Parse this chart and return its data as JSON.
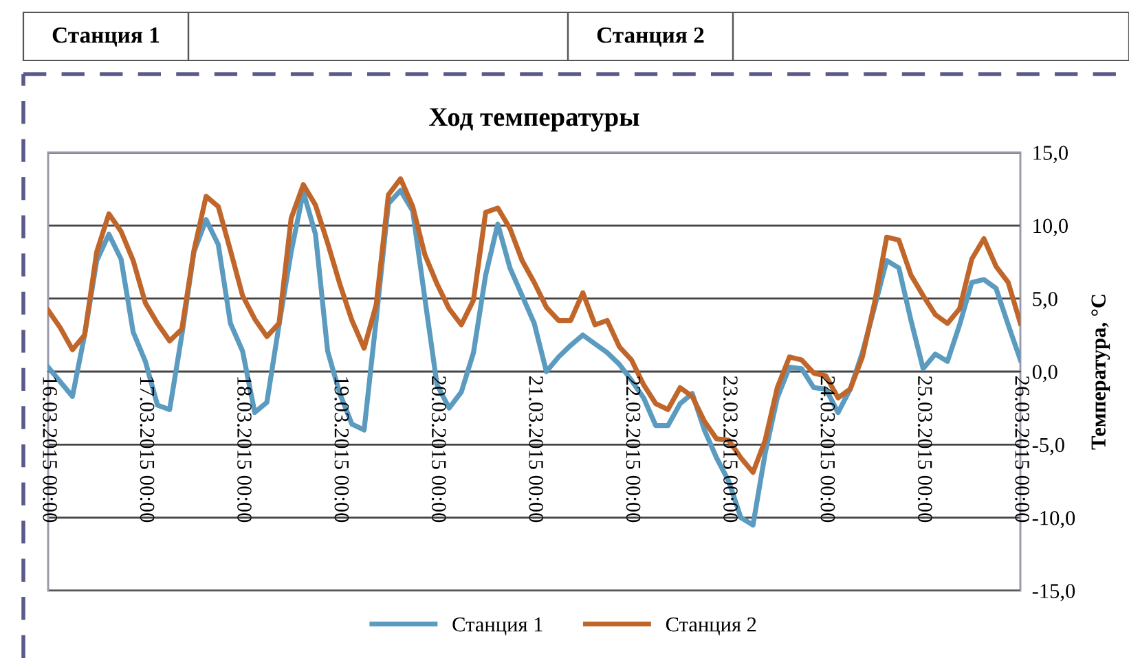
{
  "chart_data": {
    "type": "line",
    "title": "Ход температуры",
    "y2label": "Температура, °C",
    "annotations": [
      "Станция 1",
      "Станция 2"
    ],
    "x": [
      "2015-03-16T00:00",
      "2015-03-16T03:00",
      "2015-03-16T06:00",
      "2015-03-16T09:00",
      "2015-03-16T12:00",
      "2015-03-16T15:00",
      "2015-03-16T18:00",
      "2015-03-16T21:00",
      "2015-03-17T00:00",
      "2015-03-17T03:00",
      "2015-03-17T06:00",
      "2015-03-17T09:00",
      "2015-03-17T12:00",
      "2015-03-17T15:00",
      "2015-03-17T18:00",
      "2015-03-17T21:00",
      "2015-03-18T00:00",
      "2015-03-18T03:00",
      "2015-03-18T06:00",
      "2015-03-18T09:00",
      "2015-03-18T12:00",
      "2015-03-18T15:00",
      "2015-03-18T18:00",
      "2015-03-18T21:00",
      "2015-03-19T00:00",
      "2015-03-19T03:00",
      "2015-03-19T06:00",
      "2015-03-19T09:00",
      "2015-03-19T12:00",
      "2015-03-19T15:00",
      "2015-03-19T18:00",
      "2015-03-19T21:00",
      "2015-03-20T00:00",
      "2015-03-20T03:00",
      "2015-03-20T06:00",
      "2015-03-20T09:00",
      "2015-03-20T12:00",
      "2015-03-20T15:00",
      "2015-03-20T18:00",
      "2015-03-20T21:00",
      "2015-03-21T00:00",
      "2015-03-21T03:00",
      "2015-03-21T06:00",
      "2015-03-21T09:00",
      "2015-03-21T12:00",
      "2015-03-21T15:00",
      "2015-03-21T18:00",
      "2015-03-21T21:00",
      "2015-03-22T00:00",
      "2015-03-22T03:00",
      "2015-03-22T06:00",
      "2015-03-22T09:00",
      "2015-03-22T12:00",
      "2015-03-22T15:00",
      "2015-03-22T18:00",
      "2015-03-22T21:00",
      "2015-03-23T00:00",
      "2015-03-23T03:00",
      "2015-03-23T06:00",
      "2015-03-23T09:00",
      "2015-03-23T12:00",
      "2015-03-23T15:00",
      "2015-03-23T18:00",
      "2015-03-23T21:00",
      "2015-03-24T00:00",
      "2015-03-24T03:00",
      "2015-03-24T06:00",
      "2015-03-24T09:00",
      "2015-03-24T12:00",
      "2015-03-24T15:00",
      "2015-03-24T18:00",
      "2015-03-24T21:00",
      "2015-03-25T00:00",
      "2015-03-25T03:00",
      "2015-03-25T06:00",
      "2015-03-25T09:00",
      "2015-03-25T12:00",
      "2015-03-25T15:00",
      "2015-03-25T18:00",
      "2015-03-25T21:00",
      "2015-03-26T00:00"
    ],
    "series": [
      {
        "name": "Станция 1",
        "color": "#5b9bc0",
        "axis": "y2",
        "values": [
          0.3,
          -0.7,
          -1.7,
          2.5,
          7.6,
          9.4,
          7.7,
          2.7,
          0.7,
          -2.3,
          -2.6,
          2.5,
          8.2,
          10.4,
          8.7,
          3.3,
          1.4,
          -2.8,
          -2.1,
          3.2,
          8.2,
          12.3,
          9.4,
          1.4,
          -1.5,
          -3.6,
          -4.0,
          3.6,
          11.5,
          12.4,
          11.0,
          5.0,
          -0.9,
          -2.5,
          -1.4,
          1.3,
          6.6,
          10.1,
          7.1,
          5.2,
          3.3,
          0.0,
          1.0,
          1.8,
          2.5,
          1.9,
          1.3,
          0.5,
          -0.6,
          -1.8,
          -3.7,
          -3.7,
          -2.2,
          -1.5,
          -4.0,
          -5.9,
          -7.5,
          -10.0,
          -10.5,
          -5.6,
          -1.8,
          0.3,
          0.2,
          -1.1,
          -1.2,
          -2.8,
          -1.2,
          1.3,
          4.4,
          7.6,
          7.1,
          3.5,
          0.2,
          1.2,
          0.7,
          3.2,
          6.1,
          6.3,
          5.7,
          3.2,
          0.8
        ]
      },
      {
        "name": "Станция 2",
        "color": "#c0662b",
        "axis": "y2",
        "values": [
          4.2,
          3.0,
          1.5,
          2.5,
          8.2,
          10.8,
          9.6,
          7.6,
          4.7,
          3.3,
          2.1,
          2.9,
          8.3,
          12.0,
          11.3,
          8.3,
          5.2,
          3.6,
          2.4,
          3.3,
          10.5,
          12.8,
          11.4,
          8.8,
          6.0,
          3.5,
          1.6,
          4.6,
          12.1,
          13.2,
          11.3,
          8.0,
          6.0,
          4.3,
          3.2,
          4.9,
          10.9,
          11.2,
          9.8,
          7.6,
          6.1,
          4.4,
          3.5,
          3.5,
          5.4,
          3.2,
          3.5,
          1.7,
          0.8,
          -0.9,
          -2.2,
          -2.6,
          -1.1,
          -1.7,
          -3.4,
          -4.6,
          -4.7,
          -5.9,
          -6.9,
          -4.7,
          -1.1,
          1.0,
          0.8,
          -0.1,
          -0.3,
          -1.8,
          -1.2,
          1.0,
          4.7,
          9.2,
          9.0,
          6.6,
          5.2,
          3.9,
          3.3,
          4.3,
          7.7,
          9.1,
          7.2,
          6.1,
          3.3
        ]
      }
    ],
    "xlim": [
      "2015-03-16T00:00",
      "2015-03-26T00:00"
    ],
    "xticks": [
      {
        "value": "2015-03-16T00:00",
        "label": "16.03.2015 00:00"
      },
      {
        "value": "2015-03-17T00:00",
        "label": "17.03.2015 00:00"
      },
      {
        "value": "2015-03-18T00:00",
        "label": "18.03.2015 00:00"
      },
      {
        "value": "2015-03-19T00:00",
        "label": "19.03.2015 00:00"
      },
      {
        "value": "2015-03-20T00:00",
        "label": "20.03.2015 00:00"
      },
      {
        "value": "2015-03-21T00:00",
        "label": "21.03.2015 00:00"
      },
      {
        "value": "2015-03-22T00:00",
        "label": "22.03.2015 00:00"
      },
      {
        "value": "2015-03-23T00:00",
        "label": "23.03.2015 00:00"
      },
      {
        "value": "2015-03-24T00:00",
        "label": "24.03.2015 00:00"
      },
      {
        "value": "2015-03-25T00:00",
        "label": "25.03.2015 00:00"
      },
      {
        "value": "2015-03-26T00:00",
        "label": "26.03.2015 00:00"
      }
    ],
    "y2lim": [
      -15,
      15
    ],
    "y2ticks": [
      {
        "value": 15,
        "label": "15,0"
      },
      {
        "value": 10,
        "label": "10,0"
      },
      {
        "value": 5,
        "label": "5,0"
      },
      {
        "value": 0,
        "label": "0,0"
      },
      {
        "value": -5,
        "label": "-5,0"
      },
      {
        "value": -10,
        "label": "-10,0"
      },
      {
        "value": -15,
        "label": "-15,0"
      }
    ],
    "grid": "y2",
    "legend": "bottom",
    "marker": "none",
    "line_style": "solid"
  }
}
